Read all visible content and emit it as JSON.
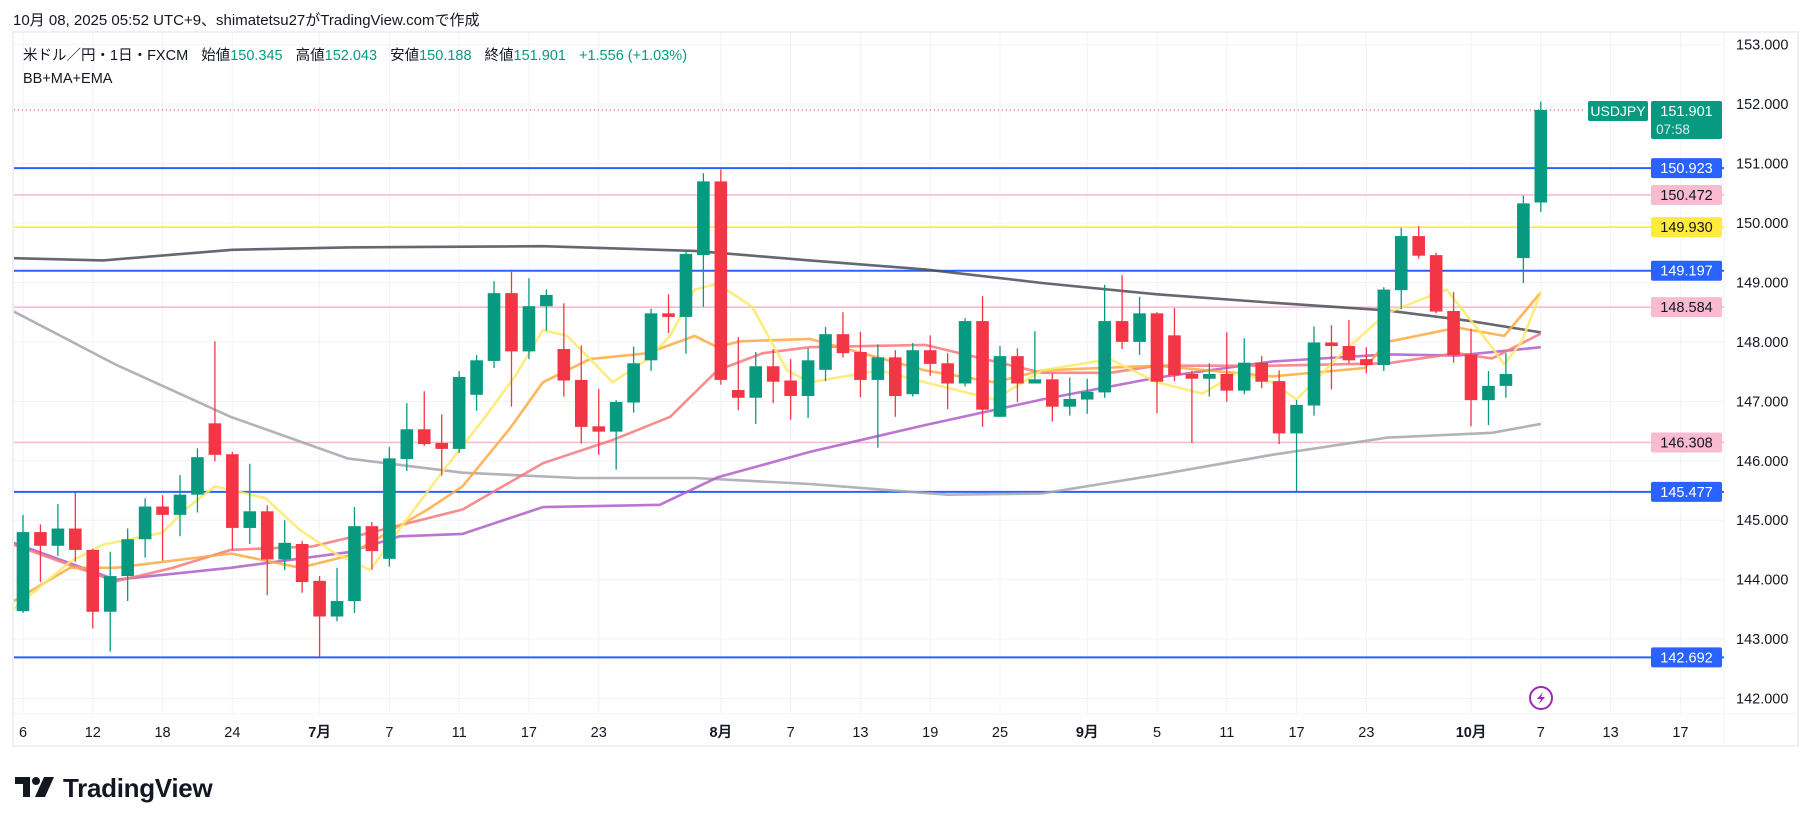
{
  "header": {
    "credit": "10月 08, 2025 05:52 UTC+9、shimatetsu27がTradingView.comで作成"
  },
  "legend": {
    "symbol": "米ドル／円・1日・FXCM",
    "open_label": "始値",
    "open": "150.345",
    "high_label": "高値",
    "high": "152.043",
    "low_label": "安値",
    "low": "150.188",
    "close_label": "終値",
    "close": "151.901",
    "change": "+1.556 (+1.03%)",
    "indicators": "BB+MA+EMA"
  },
  "brand": {
    "name": "TradingView"
  },
  "colors": {
    "up": "#089981",
    "down": "#f23645",
    "blue_level": "#2962ff",
    "pink_level": "#f8bbd0",
    "yellow_level": "#ffeb3b"
  },
  "chart_data": {
    "type": "candlestick",
    "title": "USDJPY Daily",
    "ylim": [
      141.74,
      153.23
    ],
    "xlim": [
      0.37,
      98.5
    ],
    "price_ticks": [
      "153.000",
      "152.000",
      "151.000",
      "150.000",
      "149.000",
      "148.000",
      "147.000",
      "146.000",
      "145.000",
      "144.000",
      "143.000",
      "142.000"
    ],
    "price_tick_values": [
      153,
      152,
      151,
      150,
      149,
      148,
      147,
      146,
      145,
      144,
      143,
      142
    ],
    "x_labels": [
      {
        "label": "6",
        "index": 1,
        "bold": false
      },
      {
        "label": "12",
        "index": 5,
        "bold": false
      },
      {
        "label": "18",
        "index": 9,
        "bold": false
      },
      {
        "label": "24",
        "index": 13,
        "bold": false
      },
      {
        "label": "7月",
        "index": 18,
        "bold": true
      },
      {
        "label": "7",
        "index": 22,
        "bold": false
      },
      {
        "label": "11",
        "index": 26,
        "bold": false
      },
      {
        "label": "17",
        "index": 30,
        "bold": false
      },
      {
        "label": "23",
        "index": 34,
        "bold": false
      },
      {
        "label": "8月",
        "index": 41,
        "bold": true
      },
      {
        "label": "7",
        "index": 45,
        "bold": false
      },
      {
        "label": "13",
        "index": 49,
        "bold": false
      },
      {
        "label": "19",
        "index": 53,
        "bold": false
      },
      {
        "label": "25",
        "index": 57,
        "bold": false
      },
      {
        "label": "9月",
        "index": 62,
        "bold": true
      },
      {
        "label": "5",
        "index": 66,
        "bold": false
      },
      {
        "label": "11",
        "index": 70,
        "bold": false
      },
      {
        "label": "17",
        "index": 74,
        "bold": false
      },
      {
        "label": "23",
        "index": 78,
        "bold": false
      },
      {
        "label": "10月",
        "index": 84,
        "bold": true
      },
      {
        "label": "7",
        "index": 88,
        "bold": false
      },
      {
        "label": "13",
        "index": 92,
        "bold": false
      },
      {
        "label": "17",
        "index": 96,
        "bold": false
      }
    ],
    "candles_ohlc": [
      [
        143.47,
        145.09,
        143.44,
        144.8
      ],
      [
        144.8,
        144.93,
        143.96,
        144.57
      ],
      [
        144.57,
        145.27,
        144.4,
        144.86
      ],
      [
        144.86,
        145.47,
        144.3,
        144.5
      ],
      [
        144.5,
        144.52,
        143.18,
        143.46
      ],
      [
        143.46,
        144.47,
        142.79,
        144.06
      ],
      [
        144.06,
        144.86,
        143.64,
        144.68
      ],
      [
        144.68,
        145.37,
        144.37,
        145.23
      ],
      [
        145.23,
        145.42,
        144.32,
        145.09
      ],
      [
        145.09,
        145.76,
        144.73,
        145.43
      ],
      [
        145.43,
        146.21,
        145.13,
        146.06
      ],
      [
        146.63,
        148.01,
        145.99,
        146.1
      ],
      [
        146.11,
        146.15,
        144.5,
        144.87
      ],
      [
        144.87,
        145.95,
        144.6,
        145.15
      ],
      [
        145.15,
        145.25,
        143.74,
        144.34
      ],
      [
        144.34,
        145.0,
        144.16,
        144.62
      ],
      [
        144.6,
        144.65,
        143.78,
        143.96
      ],
      [
        143.98,
        144.06,
        142.7,
        143.38
      ],
      [
        143.38,
        144.2,
        143.3,
        143.64
      ],
      [
        143.64,
        145.22,
        143.44,
        144.9
      ],
      [
        144.9,
        144.97,
        144.17,
        144.48
      ],
      [
        144.35,
        146.23,
        144.22,
        146.04
      ],
      [
        146.03,
        146.97,
        145.83,
        146.53
      ],
      [
        146.53,
        147.17,
        146.25,
        146.28
      ],
      [
        146.3,
        146.78,
        145.75,
        146.2
      ],
      [
        146.2,
        147.51,
        146.13,
        147.41
      ],
      [
        147.11,
        147.78,
        146.84,
        147.69
      ],
      [
        147.68,
        149.02,
        147.56,
        148.82
      ],
      [
        148.82,
        149.18,
        146.91,
        147.84
      ],
      [
        147.84,
        149.07,
        147.71,
        148.6
      ],
      [
        148.6,
        148.88,
        148.19,
        148.79
      ],
      [
        147.88,
        148.65,
        147.08,
        147.35
      ],
      [
        147.36,
        147.94,
        146.29,
        146.57
      ],
      [
        146.58,
        147.21,
        146.1,
        146.49
      ],
      [
        146.49,
        147.02,
        145.85,
        146.99
      ],
      [
        146.98,
        147.92,
        146.81,
        147.64
      ],
      [
        147.69,
        148.56,
        147.51,
        148.48
      ],
      [
        148.48,
        148.8,
        148.15,
        148.42
      ],
      [
        148.42,
        149.52,
        147.8,
        149.48
      ],
      [
        149.46,
        150.84,
        148.59,
        150.7
      ],
      [
        150.7,
        150.9,
        147.28,
        147.36
      ],
      [
        147.19,
        148.08,
        146.85,
        147.06
      ],
      [
        147.06,
        147.83,
        146.62,
        147.59
      ],
      [
        147.59,
        147.88,
        146.97,
        147.33
      ],
      [
        147.35,
        147.71,
        146.69,
        147.09
      ],
      [
        147.09,
        147.89,
        146.72,
        147.69
      ],
      [
        147.53,
        148.25,
        147.34,
        148.13
      ],
      [
        148.13,
        148.5,
        147.74,
        147.81
      ],
      [
        147.83,
        148.17,
        147.07,
        147.36
      ],
      [
        147.36,
        147.96,
        146.22,
        147.74
      ],
      [
        147.74,
        147.86,
        146.74,
        147.09
      ],
      [
        147.12,
        147.98,
        147.08,
        147.86
      ],
      [
        147.86,
        148.11,
        147.43,
        147.63
      ],
      [
        147.64,
        147.81,
        146.87,
        147.3
      ],
      [
        147.3,
        148.4,
        147.25,
        148.35
      ],
      [
        148.35,
        148.77,
        146.57,
        146.86
      ],
      [
        146.74,
        147.93,
        146.74,
        147.76
      ],
      [
        147.76,
        147.89,
        146.99,
        147.3
      ],
      [
        147.3,
        148.18,
        147.3,
        147.37
      ],
      [
        147.37,
        147.47,
        146.66,
        146.91
      ],
      [
        146.91,
        147.4,
        146.76,
        147.04
      ],
      [
        147.03,
        147.38,
        146.79,
        147.16
      ],
      [
        147.15,
        148.96,
        147.06,
        148.35
      ],
      [
        148.35,
        149.12,
        147.88,
        148.0
      ],
      [
        148.0,
        148.76,
        147.78,
        148.48
      ],
      [
        148.48,
        148.5,
        146.8,
        147.33
      ],
      [
        148.11,
        148.57,
        147.34,
        147.44
      ],
      [
        147.46,
        147.51,
        146.3,
        147.38
      ],
      [
        147.38,
        147.64,
        147.08,
        147.46
      ],
      [
        147.46,
        148.16,
        146.99,
        147.18
      ],
      [
        147.18,
        148.06,
        147.12,
        147.65
      ],
      [
        147.65,
        147.76,
        147.22,
        147.33
      ],
      [
        147.34,
        147.52,
        146.28,
        146.46
      ],
      [
        146.46,
        147.02,
        145.49,
        146.94
      ],
      [
        146.93,
        148.26,
        146.76,
        147.99
      ],
      [
        147.99,
        148.28,
        147.2,
        147.93
      ],
      [
        147.93,
        148.37,
        147.64,
        147.69
      ],
      [
        147.71,
        147.91,
        147.47,
        147.61
      ],
      [
        147.61,
        148.92,
        147.51,
        148.88
      ],
      [
        148.87,
        149.92,
        148.55,
        149.78
      ],
      [
        149.78,
        149.95,
        149.4,
        149.45
      ],
      [
        149.46,
        149.5,
        148.48,
        148.51
      ],
      [
        148.52,
        148.84,
        147.65,
        147.78
      ],
      [
        147.79,
        148.22,
        146.58,
        147.02
      ],
      [
        147.02,
        147.51,
        146.6,
        147.26
      ],
      [
        147.26,
        147.81,
        147.06,
        147.46
      ],
      [
        149.41,
        150.46,
        148.99,
        150.33
      ],
      [
        150.345,
        152.043,
        150.188,
        151.901
      ]
    ],
    "levels": [
      {
        "price": 150.923,
        "label": "150.923",
        "kind": "blue"
      },
      {
        "price": 150.472,
        "label": "150.472",
        "kind": "pink"
      },
      {
        "price": 149.93,
        "label": "149.930",
        "kind": "yellow"
      },
      {
        "price": 149.197,
        "label": "149.197",
        "kind": "blue"
      },
      {
        "price": 148.584,
        "label": "148.584",
        "kind": "pink"
      },
      {
        "price": 146.308,
        "label": "146.308",
        "kind": "pink"
      },
      {
        "price": 145.477,
        "label": "145.477",
        "kind": "blue"
      },
      {
        "price": 142.692,
        "label": "142.692",
        "kind": "blue"
      }
    ],
    "last_price": {
      "symbol": "USDJPY",
      "price": 151.901,
      "price_label": "151.901",
      "countdown": "07:58"
    },
    "indicators": [
      {
        "name": "ma-long-dark",
        "color": "#4a4d57",
        "points": [
          [
            0.35,
            149.41
          ],
          [
            5.6,
            149.37
          ],
          [
            13,
            149.55
          ],
          [
            19.6,
            149.59
          ],
          [
            30.8,
            149.61
          ],
          [
            39.5,
            149.53
          ],
          [
            46.1,
            149.37
          ],
          [
            52.7,
            149.22
          ],
          [
            59.4,
            148.99
          ],
          [
            66,
            148.8
          ],
          [
            72.6,
            148.66
          ],
          [
            79.2,
            148.53
          ],
          [
            84,
            148.35
          ],
          [
            88,
            148.16
          ]
        ]
      },
      {
        "name": "ma-long-gray",
        "color": "#a3a6ad",
        "points": [
          [
            0.35,
            148.53
          ],
          [
            6.3,
            147.62
          ],
          [
            12.9,
            146.74
          ],
          [
            19.6,
            146.04
          ],
          [
            26.2,
            145.8
          ],
          [
            32.8,
            145.71
          ],
          [
            39.5,
            145.71
          ],
          [
            46.1,
            145.61
          ],
          [
            54,
            145.43
          ],
          [
            59.4,
            145.45
          ],
          [
            66,
            145.76
          ],
          [
            72.6,
            146.1
          ],
          [
            79.2,
            146.39
          ],
          [
            85.2,
            146.47
          ],
          [
            88,
            146.62
          ]
        ]
      },
      {
        "name": "ma-purple",
        "color": "#b05dc8",
        "points": [
          [
            0.35,
            144.63
          ],
          [
            6.3,
            144.0
          ],
          [
            12.9,
            144.2
          ],
          [
            19.6,
            144.46
          ],
          [
            22.6,
            144.73
          ],
          [
            26.2,
            144.77
          ],
          [
            30.8,
            145.22
          ],
          [
            37.5,
            145.26
          ],
          [
            40.8,
            145.72
          ],
          [
            46.1,
            146.15
          ],
          [
            52.7,
            146.6
          ],
          [
            59.4,
            147.03
          ],
          [
            66,
            147.4
          ],
          [
            72.6,
            147.67
          ],
          [
            79.2,
            147.79
          ],
          [
            83.2,
            147.77
          ],
          [
            88,
            147.91
          ]
        ]
      },
      {
        "name": "ma-salmon",
        "color": "#f7787c",
        "points": [
          [
            0.35,
            144.6
          ],
          [
            6.3,
            143.97
          ],
          [
            9.6,
            144.2
          ],
          [
            12.9,
            144.5
          ],
          [
            17.6,
            144.56
          ],
          [
            20.9,
            144.79
          ],
          [
            26.2,
            145.18
          ],
          [
            30.8,
            145.96
          ],
          [
            34.8,
            146.35
          ],
          [
            38.1,
            146.74
          ],
          [
            40.8,
            147.52
          ],
          [
            43.4,
            147.81
          ],
          [
            46.1,
            147.91
          ],
          [
            52.7,
            147.95
          ],
          [
            59.4,
            147.48
          ],
          [
            63.3,
            147.48
          ],
          [
            66,
            147.6
          ],
          [
            72.6,
            147.6
          ],
          [
            79.2,
            147.64
          ],
          [
            83.2,
            147.81
          ],
          [
            85.2,
            147.72
          ],
          [
            88,
            148.14
          ]
        ]
      },
      {
        "name": "ema-orange",
        "color": "#ffa940",
        "points": [
          [
            0.35,
            143.62
          ],
          [
            3.7,
            144.2
          ],
          [
            6.3,
            144.2
          ],
          [
            12.9,
            144.44
          ],
          [
            16.9,
            144.2
          ],
          [
            19.6,
            144.4
          ],
          [
            24.2,
            145.18
          ],
          [
            26.2,
            145.57
          ],
          [
            28.9,
            146.54
          ],
          [
            30.8,
            147.32
          ],
          [
            33.5,
            147.71
          ],
          [
            36.8,
            147.81
          ],
          [
            39.5,
            148.1
          ],
          [
            40.8,
            147.91
          ],
          [
            42.1,
            148.01
          ],
          [
            46.1,
            148.05
          ],
          [
            52.7,
            147.52
          ],
          [
            56.7,
            147.32
          ],
          [
            59.4,
            147.52
          ],
          [
            66,
            147.6
          ],
          [
            72.6,
            147.42
          ],
          [
            77.9,
            147.56
          ],
          [
            79.2,
            148.0
          ],
          [
            83.2,
            148.24
          ],
          [
            85.9,
            148.1
          ],
          [
            88,
            148.83
          ]
        ]
      },
      {
        "name": "ema-yellow",
        "color": "#fde968",
        "points": [
          [
            0.35,
            143.48
          ],
          [
            3.7,
            144.3
          ],
          [
            5.6,
            144.59
          ],
          [
            9,
            144.79
          ],
          [
            10.3,
            145.18
          ],
          [
            12,
            145.57
          ],
          [
            14.9,
            145.37
          ],
          [
            16.9,
            144.83
          ],
          [
            18.9,
            144.44
          ],
          [
            20.9,
            144.16
          ],
          [
            22.9,
            144.98
          ],
          [
            24.9,
            145.76
          ],
          [
            27.5,
            146.74
          ],
          [
            29.2,
            147.42
          ],
          [
            30.8,
            148.2
          ],
          [
            32.2,
            148.1
          ],
          [
            34.8,
            147.32
          ],
          [
            36.8,
            147.71
          ],
          [
            38.1,
            148.1
          ],
          [
            39.5,
            148.88
          ],
          [
            40.8,
            148.98
          ],
          [
            42.8,
            148.59
          ],
          [
            44.8,
            147.52
          ],
          [
            46.1,
            147.32
          ],
          [
            50.1,
            147.52
          ],
          [
            52.7,
            147.32
          ],
          [
            56.7,
            147.03
          ],
          [
            59.4,
            147.52
          ],
          [
            63.3,
            147.71
          ],
          [
            66,
            147.32
          ],
          [
            68.6,
            147.13
          ],
          [
            70.6,
            147.48
          ],
          [
            72.6,
            147.32
          ],
          [
            74,
            147.03
          ],
          [
            76.6,
            147.81
          ],
          [
            79.2,
            148.49
          ],
          [
            82.6,
            148.88
          ],
          [
            85.2,
            147.91
          ],
          [
            85.9,
            147.62
          ],
          [
            86.9,
            148.0
          ],
          [
            88,
            148.83
          ]
        ]
      }
    ]
  }
}
